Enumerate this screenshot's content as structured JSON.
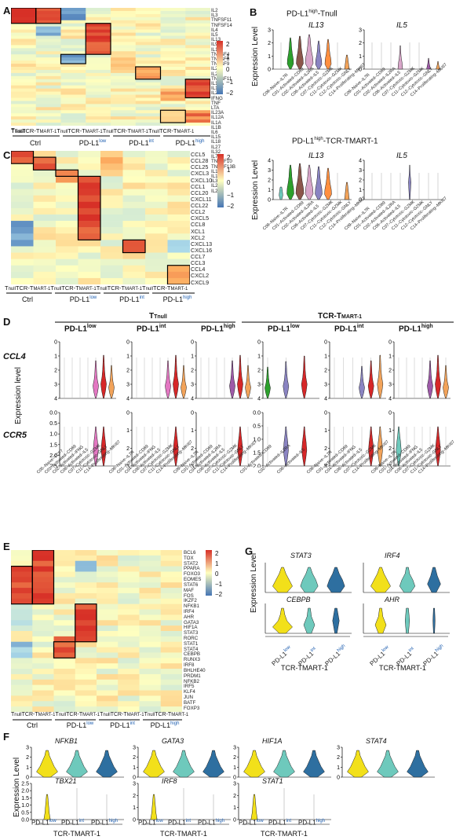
{
  "panel_labels": {
    "A": "A",
    "B": "B",
    "C": "C",
    "D": "D",
    "E": "E",
    "F": "F",
    "G": "G"
  },
  "heatmap_A": {
    "genes": [
      "IL2",
      "IL3",
      "TNFSF11",
      "TNFSF14",
      "IL4",
      "IL5",
      "IL13",
      "IL9",
      "IL10",
      "TNFSF4",
      "TNFSF8",
      "TNFSF9",
      "IL21",
      "IL26",
      "TNFSF11",
      "IL17A",
      "IL17F",
      "IL22",
      "IFNG",
      "TNF",
      "LTA",
      "IL23A",
      "IL12A",
      "IL1A",
      "IL1B",
      "IL6",
      "IL15",
      "IL18",
      "IL27",
      "IL32",
      "IL7",
      "TNFSF10",
      "TNFSF13B",
      "IL16",
      "IL11",
      "IL33",
      "IL25",
      "IL24"
    ],
    "legend": [
      "2",
      "1",
      "0",
      "−1",
      "−2"
    ]
  },
  "heatmap_C": {
    "genes": [
      "CCL5",
      "CCL28",
      "CCL25",
      "CXCL3",
      "CXCL10",
      "CCL1",
      "CCL20",
      "CXCL11",
      "CCL22",
      "CCL2",
      "CXCL5",
      "CCL8",
      "XCL1",
      "XCL2",
      "CXCL13",
      "CXCL16",
      "CCL7",
      "CCL3",
      "CCL4",
      "CXCL2",
      "CXCL9"
    ],
    "legend": [
      "2",
      "1",
      "0",
      "−1",
      "−2"
    ]
  },
  "heatmap_E": {
    "genes": [
      "BCL6",
      "TOX",
      "STAT2",
      "PPARA",
      "FOXO3",
      "EOMES",
      "STAT6",
      "MAF",
      "FOS",
      "IKZF2",
      "NFKB1",
      "IRF4",
      "AHR",
      "GATA3",
      "HIF1A",
      "STAT3",
      "RORC",
      "STAT1",
      "STAT4",
      "CEBPB",
      "RUNX3",
      "IRF8",
      "BHLHE40",
      "PRDM1",
      "NFKB2",
      "IRF5",
      "KLF4",
      "JUN",
      "BATF",
      "FOXP3"
    ],
    "legend": [
      "2",
      "1",
      "0",
      "−1",
      "−2"
    ]
  },
  "col_labels": {
    "tnull": "Tnull",
    "tcr": "TCR-T",
    "mart": "MART-1",
    "ctrl": "Ctrl",
    "pdl1": "PD-L1",
    "low": "low",
    "int": "int",
    "high": "high"
  },
  "panel_B": {
    "title1": "PD-L1",
    "title1_sup": "high",
    "title1_rest": "-Tnull",
    "title2": "PD-L1",
    "title2_sup": "high",
    "title2_rest": "-TCR-TMART-1",
    "ylabel": "Expression Level",
    "genes_top": [
      "IL13",
      "IL5"
    ],
    "genes_bottom": [
      "IL13",
      "IL5"
    ],
    "yticks_top_left": [
      "0",
      "1",
      "2",
      "3"
    ],
    "yticks_top_right": [
      "0",
      "1",
      "2",
      "3"
    ],
    "yticks_bottom_left": [
      "0",
      "1",
      "2",
      "3",
      "4"
    ],
    "yticks_bottom_right": [
      "0",
      "1",
      "2",
      "3",
      "4"
    ],
    "clusters_top": [
      "C09–Naive–IL7R",
      "C01–Activated–CD69",
      "C02–Activated–IL2RA",
      "C06–Activated–IL5",
      "C07–Cytotoxic–GZMK",
      "C11–Cytotoxic–GZMK",
      "C12–Cytotoxic–GNLY",
      "C14–Proliferating–MKI67"
    ],
    "clusters_bottom": [
      "C09–Naive–IL7R",
      "C01–Activated–CD69",
      "C02–Activated–IL2RA",
      "C06–Activated–IL5",
      "C07–Cytotoxic–GZMK",
      "C11–Cytotoxic–GZMK",
      "C12–Cytotoxic–GNLY",
      "C14–Proliferating–MKI67"
    ]
  },
  "panel_D": {
    "group1": "Tnull",
    "group2": "TCR-TMART-1",
    "sub": [
      "PD-L1low",
      "PD-L1int",
      "PD-L1high",
      "PD-L1low",
      "PD-L1int",
      "PD-L1high"
    ],
    "sub_base": "PD-L1",
    "sub_sup": [
      "low",
      "int",
      "high",
      "low",
      "int",
      "high"
    ],
    "genes": [
      "CCL4",
      "CCR5"
    ],
    "ylabel": "Expression level",
    "yticks_ccl4": [
      [
        "4",
        "3",
        "2",
        "1",
        "0"
      ],
      [
        "4",
        "3",
        "2",
        "1",
        "0"
      ],
      [
        "4",
        "3",
        "2",
        "1",
        "0"
      ],
      [
        "4",
        "3",
        "2",
        "1",
        "0"
      ],
      [
        "4",
        "3",
        "2",
        "1",
        "0"
      ],
      [
        "4",
        "3",
        "2",
        "1",
        "0"
      ]
    ],
    "yticks_ccr5": [
      [
        "2.5",
        "2.0",
        "1.5",
        "1.0",
        "0.5",
        "0.0"
      ],
      [
        "3",
        "2",
        "1",
        "0"
      ],
      [
        "3",
        "2",
        "1",
        "0"
      ],
      [
        "2.0",
        "1.5",
        "1.0",
        "0.5",
        "0.0"
      ],
      [
        "3",
        "2",
        "1",
        "0"
      ],
      [
        "3",
        "2",
        "1",
        "0"
      ]
    ],
    "clusters_1": [
      "C05–Naive–TCF7",
      "C01–Activated–CD69",
      "C02–Activated–IFNG",
      "C06–Activated–IL5",
      "C07–Cytotoxic–GZMK",
      "C11–Cytotoxic–GNLY",
      "C14–Proliferating–MKI67"
    ],
    "clusters_2": [
      "C09–Naive–IL7R",
      "C01–Activated–CD69",
      "C04–Activated–IFNG",
      "C06–Activated–IL5",
      "C07–Cytotoxic–GZMK",
      "C11–Cytotoxic–GNLY",
      "C14–Proliferating–MKI67"
    ],
    "clusters_3": [
      "C09–Naive–IL7R",
      "C01–Activated–CD69",
      "C04–Activated–IL2RA",
      "C06–Activated–IL5",
      "C07–Cytotoxic–GZMK",
      "C11–Cytotoxic–GNLY",
      "C14–Proliferating–MKI67"
    ],
    "clusters_4": [
      "C01–Activated–CD69",
      "C02–Activated–IL2RA",
      "C06–Activated–IL5"
    ],
    "clusters_5": [
      "C09–Naive–IL7R",
      "C01–Activated–CD69",
      "C04–Activated–IFNG",
      "C06–Activated–IL5",
      "C07–Cytotoxic–GZMK",
      "C14–Proliferating–MKI67"
    ],
    "clusters_6": [
      "C09–Naive–IL7R",
      "C01–Activated–CD69",
      "C04–Activated–IFNG",
      "C06–Activated–IL5",
      "C07–Cytotoxic–GZMK",
      "C11–Cytotoxic–GNLY",
      "C14–Proliferating–MKI67"
    ]
  },
  "panel_F": {
    "ylabel": "Expression Level",
    "genes_row1": [
      "NFKB1",
      "GATA3",
      "HIF1A",
      "STAT4"
    ],
    "genes_row2": [
      "TBX21",
      "IRF8",
      "STAT1"
    ],
    "yticks_row1": [
      "0",
      "1",
      "2",
      "3"
    ],
    "yticks_row2a": [
      "0.0",
      "0.5",
      "1.0",
      "1.5",
      "2.0",
      "2.5"
    ],
    "yticks_row2b": [
      "0",
      "1",
      "2",
      "3"
    ],
    "yticks_row2c": [
      "0",
      "1",
      "2",
      "3"
    ],
    "xcats": [
      "PD-L1",
      "PD-L1",
      "PD-L1"
    ],
    "xsups": [
      "low",
      "int",
      "high"
    ],
    "group": "TCR-TMART-1"
  },
  "panel_G": {
    "ylabel": "Expression Level",
    "genes": [
      "STAT3",
      "IRF4",
      "CEBPB",
      "AHR"
    ],
    "xcats": [
      "PD-L1",
      "PD-L1",
      "PD-L1"
    ],
    "xsups": [
      "low",
      "int",
      "high"
    ],
    "group": "TCR-TMART-1"
  },
  "colors": {
    "heat_high": "#d73027",
    "heat_mid": "#ffffbf",
    "heat_low": "#4575b4",
    "violin_yellow": "#f2e01a",
    "violin_teal": "#6ec9bc",
    "violin_blue": "#2e6fa0"
  }
}
